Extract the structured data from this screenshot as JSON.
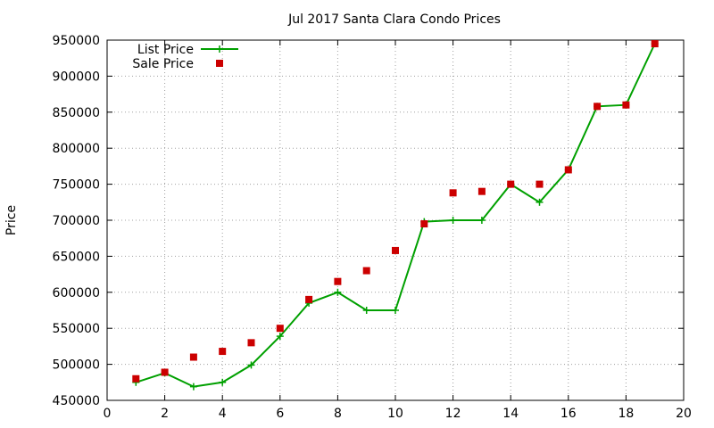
{
  "chart_data": {
    "type": "line",
    "title": "Jul 2017 Santa Clara Condo Prices",
    "xlabel": "",
    "ylabel": "Price",
    "xlim": [
      0,
      20
    ],
    "ylim": [
      450000,
      950000
    ],
    "x_ticks": [
      0,
      2,
      4,
      6,
      8,
      10,
      12,
      14,
      16,
      18,
      20
    ],
    "y_ticks": [
      450000,
      500000,
      550000,
      600000,
      650000,
      700000,
      750000,
      800000,
      850000,
      900000,
      950000
    ],
    "grid": true,
    "legend_position": "top-left",
    "series": [
      {
        "name": "List Price",
        "style": "line+cross",
        "color": "#00a000",
        "x": [
          1,
          2,
          3,
          4,
          5,
          6,
          7,
          8,
          9,
          10,
          11,
          12,
          13,
          14,
          15,
          16,
          17,
          18,
          19
        ],
        "y": [
          475000,
          488000,
          469000,
          475000,
          499000,
          539000,
          585000,
          600000,
          575000,
          575000,
          698000,
          700000,
          700000,
          750000,
          725000,
          770000,
          858000,
          860000,
          945000
        ]
      },
      {
        "name": "Sale Price",
        "style": "square-points",
        "color": "#cc0000",
        "x": [
          1,
          2,
          3,
          4,
          5,
          6,
          7,
          8,
          9,
          10,
          11,
          12,
          13,
          14,
          15,
          16,
          17,
          18,
          19
        ],
        "y": [
          480000,
          489000,
          510000,
          518000,
          530000,
          550000,
          590000,
          615000,
          630000,
          658000,
          695000,
          738000,
          740000,
          750000,
          750000,
          770000,
          858000,
          860000,
          945000
        ]
      }
    ]
  }
}
